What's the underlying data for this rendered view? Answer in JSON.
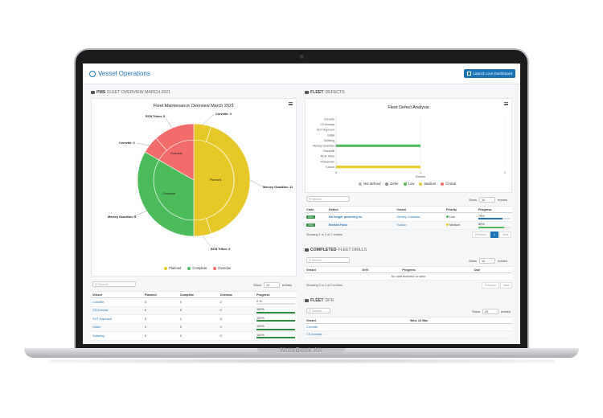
{
  "device": {
    "brand_label": "NoteBook Air"
  },
  "app": {
    "title": "Vessel Operations",
    "live_button": "Launch Live Dashboard"
  },
  "pms_panel": {
    "title_bold": "PMS",
    "title_light": "FLEET OVERVIEW MARCH 2021",
    "chart": {
      "title": "Fleet Maintenance Overview March 2021",
      "inner_labels": [
        "Planned",
        "Complete",
        "Overdue"
      ],
      "outer_labels": [
        {
          "text": "Corvette: 3"
        },
        {
          "text": "Mersey Guardian: 11"
        },
        {
          "text": "RCN Triton: 4"
        },
        {
          "text": "Mersey Guardian: 8"
        },
        {
          "text": "Corvette: 2"
        },
        {
          "text": "RCN Triton: 5"
        }
      ],
      "legend": [
        {
          "label": "Planned",
          "color": "#e6c928"
        },
        {
          "label": "Complete",
          "color": "#4cbb5a"
        },
        {
          "label": "Overdue",
          "color": "#f26c6c"
        }
      ]
    },
    "table": {
      "search_label": "Search:",
      "show_label": "Show",
      "show_value": "10",
      "entries_label": "entries",
      "headers": [
        "Vessel",
        "Planned",
        "Complete",
        "Overdue",
        "Progress"
      ],
      "rows": [
        {
          "vessel": "Corvette",
          "planned": "3",
          "complete": "0",
          "overdue": "2",
          "progress": "0 %",
          "pct": 0
        },
        {
          "vessel": "CS Armada",
          "planned": "0",
          "complete": "0",
          "overdue": "0",
          "progress": "100%",
          "pct": 100
        },
        {
          "vessel": "EDT Argonaut",
          "planned": "0",
          "complete": "1",
          "overdue": "0",
          "progress": "100%",
          "pct": 100
        },
        {
          "vessel": "Ghibli",
          "planned": "0",
          "complete": "0",
          "overdue": "0",
          "progress": "100%",
          "pct": 100
        },
        {
          "vessel": "Gullwing",
          "planned": "0",
          "complete": "0",
          "overdue": "0",
          "progress": "100%",
          "pct": 100
        }
      ]
    }
  },
  "defects_panel": {
    "title_bold": "FLEET",
    "title_light": "DEFECTS",
    "chart": {
      "title": "Fleet Defect Analysis",
      "categories": [
        "Corvette",
        "CS Armada",
        "EDT Argonaut",
        "Ghibli",
        "Gullwing",
        "Mersey Guardian",
        "Razorbill",
        "RCN Triton",
        "Timewinder",
        "Tucson"
      ],
      "x_ticks": [
        "0",
        "1",
        "2"
      ],
      "x_label": "Defects",
      "legend": [
        {
          "label": "Not defined",
          "color": "#b0b5ba"
        },
        {
          "label": "Defer",
          "color": "#8a8f94"
        },
        {
          "label": "Low",
          "color": "#4cbb5a"
        },
        {
          "label": "Medium",
          "color": "#e6c928"
        },
        {
          "label": "Critical",
          "color": "#f26c6c"
        }
      ]
    },
    "chart_data": {
      "type": "bar",
      "categories": [
        "Corvette",
        "CS Armada",
        "EDT Argonaut",
        "Ghibli",
        "Gullwing",
        "Mersey Guardian",
        "Razorbill",
        "RCN Triton",
        "Timewinder",
        "Tucson"
      ],
      "series": [
        {
          "name": "Low",
          "values": [
            0,
            0,
            0,
            0,
            0,
            1,
            0,
            0,
            0,
            0
          ]
        },
        {
          "name": "Medium",
          "values": [
            0,
            0,
            0,
            0,
            0,
            0,
            0,
            0,
            0,
            1
          ]
        }
      ],
      "xlim": [
        0,
        2
      ],
      "orientation": "horizontal"
    },
    "table": {
      "search_label": "Search:",
      "show_label": "Show",
      "show_value": "10",
      "entries_label": "entries",
      "headers": [
        "Code",
        "Defect",
        "Vessel",
        "Priority",
        "Progress"
      ],
      "rows": [
        {
          "code": "0001",
          "defect": "No longer powering on",
          "vessel": "Mersey Guardian",
          "priority": "Low",
          "priority_color": "#4cbb5a",
          "progress": "75%",
          "pct": 75,
          "bar_color": "#1d75b8"
        },
        {
          "code": "0002",
          "defect": "Broken Hose",
          "vessel": "Tucson",
          "priority": "Medium",
          "priority_color": "#e6c928",
          "progress": "80%",
          "pct": 80,
          "bar_color": "#4cbb5a"
        }
      ],
      "info": "Showing 1 to 2 of 2 entries",
      "pager": [
        "Previous",
        "1",
        "Next"
      ]
    }
  },
  "drills_panel": {
    "title_bold": "COMPLETED",
    "title_light": "FLEET DRILLS",
    "table": {
      "search_label": "Search:",
      "show_label": "Show",
      "show_value": "10",
      "entries_label": "entries",
      "headers": [
        "Vessel",
        "Drill",
        "Progress",
        "Due"
      ],
      "empty": "No data available in table",
      "info": "Showing 0 to 0 of 0 entries",
      "pager": [
        "Previous",
        "Next"
      ]
    }
  },
  "dpr_panel": {
    "title_bold": "FLEET",
    "title_light": "DPR",
    "table": {
      "search_label": "Search:",
      "show_label": "Show",
      "show_value": "25",
      "entries_label": "entries",
      "headers": [
        "Vessel",
        "Wed, 24 Mar"
      ],
      "rows": [
        {
          "vessel": "Corvette"
        },
        {
          "vessel": "CS Armada"
        }
      ]
    }
  }
}
